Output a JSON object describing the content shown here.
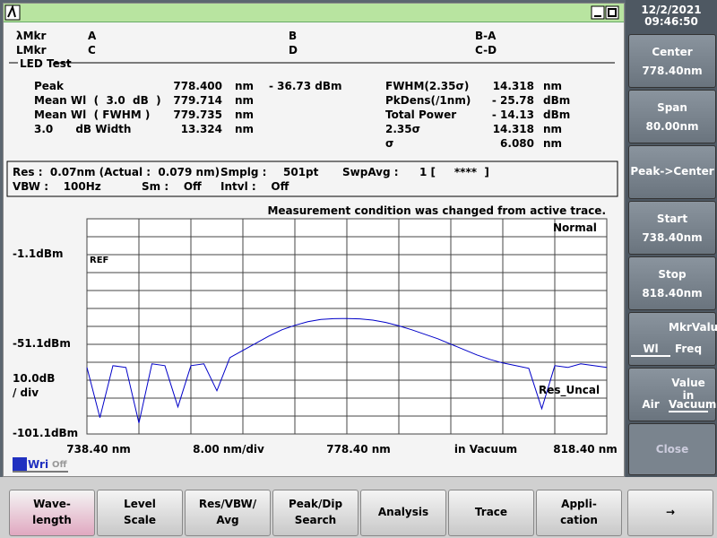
{
  "clock": {
    "date": "12/2/2021",
    "time": "09:46:50"
  },
  "markers": {
    "row1": [
      "λMkr",
      "A",
      "B",
      "B-A"
    ],
    "row2": [
      "LMkr",
      "C",
      "D",
      "C-D"
    ]
  },
  "section": "LED Test",
  "results_left": [
    {
      "label": "Peak",
      "value": "778.400",
      "unit": "nm",
      "extra": "- 36.73 dBm"
    },
    {
      "label": "Mean Wl  (  3.0  dB  )",
      "value": "779.714",
      "unit": "nm"
    },
    {
      "label": "Mean Wl  ( FWHM )",
      "value": "779.735",
      "unit": "nm"
    },
    {
      "label": "3.0      dB Width",
      "value": "13.324",
      "unit": "nm"
    }
  ],
  "results_right": [
    {
      "label": "FWHM(2.35σ)",
      "value": "14.318",
      "unit": "nm"
    },
    {
      "label": "PkDens(/1nm)",
      "value": "- 25.78",
      "unit": "dBm"
    },
    {
      "label": "Total Power",
      "value": "- 14.13",
      "unit": "dBm"
    },
    {
      "label": "2.35σ",
      "value": "14.318",
      "unit": "nm"
    },
    {
      "label": "σ",
      "value": "6.080",
      "unit": "nm"
    }
  ],
  "settings": {
    "res": "Res :  0.07nm (Actual :  0.079 nm)",
    "smplg_label": "Smplg :",
    "smplg": "501pt",
    "swpavg_label": "SwpAvg :",
    "swpavg": "1 [     ****  ]",
    "vbw": "VBW :    100Hz",
    "sm": "Sm :    Off",
    "intvl": "Intvl :    Off"
  },
  "plot": {
    "notice": "Measurement condition was changed from active trace.",
    "mode": "Normal",
    "ref": "REF",
    "uncal": "Res_Uncal",
    "y_labels": [
      "-1.1dBm",
      "-51.1dBm",
      "10.0dB",
      "/ div",
      "-101.1dBm"
    ],
    "x_labels": [
      "738.40 nm",
      "8.00 nm/div",
      "778.40 nm",
      "in Vacuum",
      "818.40 nm"
    ],
    "wri": "Wri",
    "wri_state": "Off",
    "xlim": [
      738.4,
      818.4
    ],
    "ylim": [
      -101.1,
      18.9
    ],
    "color": "#0000c8",
    "trace": {
      "x": [
        738.4,
        740.4,
        742.4,
        744.4,
        746.4,
        748.4,
        750.4,
        752.4,
        754.4,
        756.4,
        758.4,
        760.4,
        762.4,
        764.4,
        766.4,
        768.4,
        770.4,
        772.4,
        774.4,
        776.4,
        778.4,
        780.4,
        782.4,
        784.4,
        786.4,
        788.4,
        790.4,
        792.4,
        794.4,
        796.4,
        798.4,
        800.4,
        802.4,
        804.4,
        806.4,
        808.4,
        810.4,
        812.4,
        814.4,
        816.4,
        818.4
      ],
      "y": [
        -64,
        -92,
        -63,
        -64,
        -95,
        -62,
        -63,
        -86,
        -63,
        -62,
        -77,
        -58.5,
        -54.5,
        -50.5,
        -46.5,
        -43,
        -40.5,
        -38.5,
        -37.2,
        -36.8,
        -36.7,
        -36.9,
        -37.6,
        -38.9,
        -40.8,
        -43,
        -45.5,
        -48,
        -51,
        -54,
        -57,
        -59.5,
        -61.5,
        -63,
        -64.5,
        -87,
        -63,
        -64,
        -62,
        -63,
        -64
      ]
    }
  },
  "softkeys": [
    [
      "Center",
      "778.40nm"
    ],
    [
      "Span",
      "80.00nm"
    ],
    [
      "Peak->Center"
    ],
    [
      "Start",
      "738.40nm"
    ],
    [
      "Stop",
      "818.40nm"
    ],
    [
      "MkrValue",
      "Wl",
      "Freq"
    ],
    [
      "Value in",
      "Air",
      "Vacuum"
    ],
    [
      "Close"
    ]
  ],
  "bottom_buttons": [
    [
      "Wave-",
      "length"
    ],
    [
      "Level",
      "Scale"
    ],
    [
      "Res/VBW/",
      "Avg"
    ],
    [
      "Peak/Dip",
      "Search"
    ],
    [
      "Analysis"
    ],
    [
      "Trace"
    ],
    [
      "Appli-",
      "cation"
    ],
    [
      "→"
    ]
  ]
}
